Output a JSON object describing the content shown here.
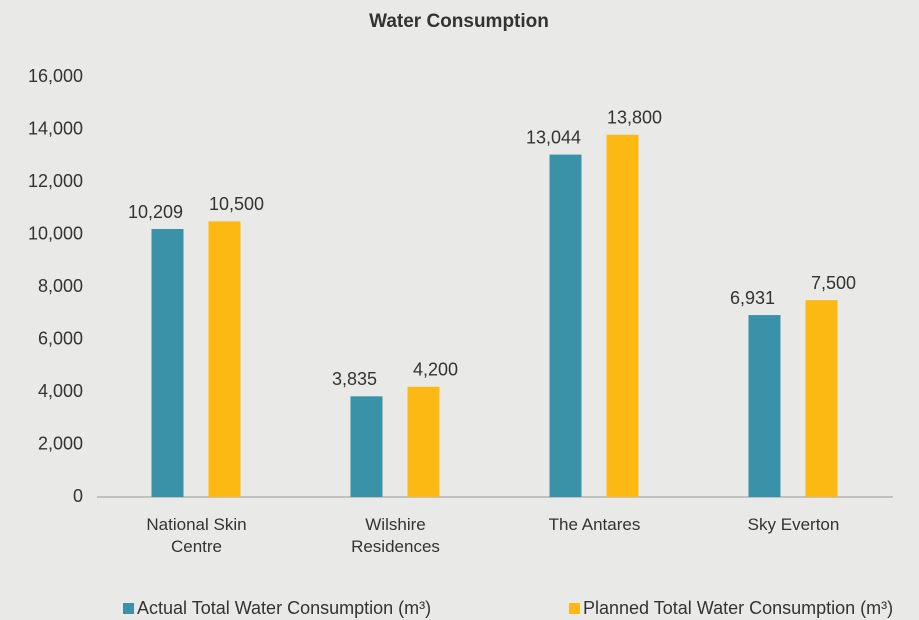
{
  "chart_data": {
    "type": "bar",
    "title": "Water Consumption",
    "categories": [
      "National Skin Centre",
      "Wilshire Residences",
      "The Antares",
      "Sky Everton"
    ],
    "series": [
      {
        "name": "Actual Total Water Consumption (m³)",
        "color": "#3a92a8",
        "values": [
          10209,
          3835,
          13044,
          6931
        ],
        "value_labels": [
          "10,209",
          "3,835",
          "13,044",
          "6,931"
        ]
      },
      {
        "name": "Planned Total Water Consumption (m³)",
        "color": "#fdb913",
        "values": [
          10500,
          4200,
          13800,
          7500
        ],
        "value_labels": [
          "10,500",
          "4,200",
          "13,800",
          "7,500"
        ]
      }
    ],
    "ylim": [
      0,
      16000
    ],
    "yticks": [
      0,
      {
        "value": 2000,
        "label": "2,000"
      },
      {
        "value": 4000,
        "label": "4,000"
      },
      {
        "value": 6000,
        "label": "6,000"
      },
      {
        "value": 8000,
        "label": "8,000"
      },
      {
        "value": 10000,
        "label": "10,000"
      },
      {
        "value": 12000,
        "label": "12,000"
      },
      {
        "value": 14000,
        "label": "14,000"
      },
      {
        "value": 16000,
        "label": "16,000"
      }
    ],
    "grid": false,
    "legend": "bottom"
  }
}
